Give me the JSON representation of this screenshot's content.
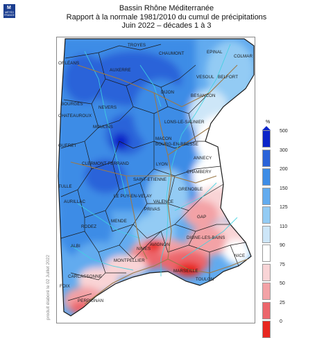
{
  "logo": {
    "mark": "M",
    "text_line1": "MÉTÉO",
    "text_line2": "FRANCE"
  },
  "title": {
    "line1": "Bassin Rhône Méditerranée",
    "line2": "Rapport à la normale 1981/2010 du cumul de précipitations",
    "line3": "Juin 2022 – décades 1 à 3"
  },
  "legend": {
    "unit": "%",
    "ticks": [
      "500",
      "300",
      "200",
      "150",
      "125",
      "110",
      "90",
      "75",
      "50",
      "25",
      "0"
    ],
    "colors": [
      "#0b24c9",
      "#2a63d9",
      "#3d8ce6",
      "#62abef",
      "#93cbf4",
      "#cde6f8",
      "#ffffff",
      "#f9d4d6",
      "#f3a2a6",
      "#ec666c",
      "#e8261f"
    ]
  },
  "credit": "produit élaboré le 02 Juillet 2022",
  "cities": [
    {
      "name": "TROYES"
    },
    {
      "name": "CHAUMONT"
    },
    {
      "name": "EPINAL"
    },
    {
      "name": "COLMAR"
    },
    {
      "name": "ORLÉANS"
    },
    {
      "name": "AUXERRE"
    },
    {
      "name": "VESOUL"
    },
    {
      "name": "BELFORT"
    },
    {
      "name": "DIJON"
    },
    {
      "name": "BESANCON"
    },
    {
      "name": "BOURGES"
    },
    {
      "name": "NEVERS"
    },
    {
      "name": "LONS-LE-SAUNIER"
    },
    {
      "name": "CHATEAUROUX"
    },
    {
      "name": "MOULINS"
    },
    {
      "name": "MACON"
    },
    {
      "name": "BOURG-EN-BRESSE"
    },
    {
      "name": "GUERET"
    },
    {
      "name": "ANNECY"
    },
    {
      "name": "CLERMONT-FERRAND"
    },
    {
      "name": "LYON"
    },
    {
      "name": "CHAMBERY"
    },
    {
      "name": "TULLE"
    },
    {
      "name": "SAINT-ETIENNE"
    },
    {
      "name": "GRENOBLE"
    },
    {
      "name": "LE PUY-EN-VELAY"
    },
    {
      "name": "AURILLAC"
    },
    {
      "name": "VALENCE"
    },
    {
      "name": "PRIVAS"
    },
    {
      "name": "GAP"
    },
    {
      "name": "RODEZ"
    },
    {
      "name": "MENDE"
    },
    {
      "name": "DIGNE-LES-BAINS"
    },
    {
      "name": "AVIGNON"
    },
    {
      "name": "ALBI"
    },
    {
      "name": "NIMES"
    },
    {
      "name": "NICE"
    },
    {
      "name": "MONTPELLIER"
    },
    {
      "name": "MARSEILLE"
    },
    {
      "name": "CARCASSONNE"
    },
    {
      "name": "TOULON"
    },
    {
      "name": "PERPIGNAN"
    },
    {
      "name": "FOIX"
    }
  ]
}
